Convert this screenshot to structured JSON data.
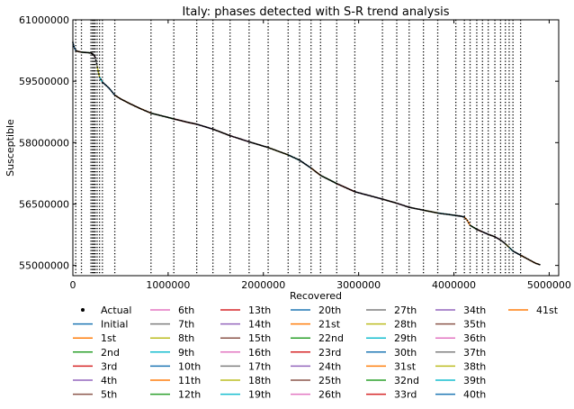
{
  "chart_data": {
    "type": "line",
    "title": "Italy: phases detected with S-R trend analysis",
    "xlabel": "Recovered",
    "ylabel": "Susceptible",
    "xlim": [
      0,
      5100000
    ],
    "ylim": [
      54750000,
      61000000
    ],
    "x_ticks": [
      0,
      1000000,
      2000000,
      3000000,
      4000000,
      5000000
    ],
    "x_tick_labels": [
      "0",
      "1000000",
      "2000000",
      "3000000",
      "4000000",
      "5000000"
    ],
    "y_ticks": [
      55000000,
      56500000,
      58000000,
      59500000,
      61000000
    ],
    "y_tick_labels": [
      "55000000",
      "56500000",
      "58000000",
      "59500000",
      "61000000"
    ],
    "grid": false,
    "legend_position": "bottom",
    "legend": [
      "Actual",
      "Initial",
      "1st",
      "2nd",
      "3rd",
      "4th",
      "5th",
      "6th",
      "7th",
      "8th",
      "9th",
      "10th",
      "11th",
      "12th",
      "13th",
      "14th",
      "15th",
      "16th",
      "17th",
      "18th",
      "19th",
      "20th",
      "21st",
      "22nd",
      "23rd",
      "24th",
      "25th",
      "26th",
      "27th",
      "28th",
      "29th",
      "30th",
      "31st",
      "32nd",
      "33rd",
      "34th",
      "35th",
      "36th",
      "37th",
      "38th",
      "39th",
      "40th",
      "41st"
    ],
    "palette": [
      "#1f77b4",
      "#ff7f0e",
      "#2ca02c",
      "#d62728",
      "#9467bd",
      "#8c564b",
      "#e377c2",
      "#7f7f7f",
      "#bcbd22",
      "#17becf"
    ],
    "phase_change_points": [
      30000,
      90000,
      190000,
      205000,
      215000,
      225000,
      235000,
      255000,
      280000,
      310000,
      440000,
      820000,
      1060000,
      1300000,
      1470000,
      1650000,
      1850000,
      2050000,
      2260000,
      2380000,
      2500000,
      2600000,
      2770000,
      2960000,
      3250000,
      3400000,
      3530000,
      3680000,
      3830000,
      4020000,
      4110000,
      4170000,
      4240000,
      4300000,
      4360000,
      4430000,
      4490000,
      4540000,
      4580000,
      4620000,
      4700000
    ],
    "actual": {
      "x": [
        0,
        10000,
        30000,
        50000,
        90000,
        150000,
        190000,
        205000,
        220000,
        235000,
        250000,
        265000,
        280000,
        310000,
        380000,
        440000,
        500000,
        600000,
        700000,
        820000,
        940000,
        1060000,
        1200000,
        1300000,
        1470000,
        1650000,
        1850000,
        2050000,
        2260000,
        2380000,
        2500000,
        2600000,
        2770000,
        2960000,
        3250000,
        3400000,
        3530000,
        3680000,
        3830000,
        4020000,
        4080000,
        4110000,
        4140000,
        4170000,
        4240000,
        4300000,
        4360000,
        4430000,
        4490000,
        4540000,
        4580000,
        4620000,
        4700000,
        4780000,
        4860000,
        4900000
      ],
      "y": [
        60450000,
        60350000,
        60250000,
        60230000,
        60210000,
        60200000,
        60190000,
        60170000,
        60140000,
        60080000,
        59930000,
        59750000,
        59600000,
        59480000,
        59330000,
        59160000,
        59070000,
        58950000,
        58840000,
        58720000,
        58650000,
        58580000,
        58500000,
        58450000,
        58330000,
        58170000,
        58020000,
        57880000,
        57700000,
        57570000,
        57380000,
        57200000,
        57000000,
        56800000,
        56620000,
        56520000,
        56420000,
        56350000,
        56280000,
        56220000,
        56200000,
        56180000,
        56100000,
        55980000,
        55880000,
        55820000,
        55760000,
        55700000,
        55620000,
        55530000,
        55440000,
        55350000,
        55250000,
        55150000,
        55050000,
        55020000
      ]
    }
  }
}
